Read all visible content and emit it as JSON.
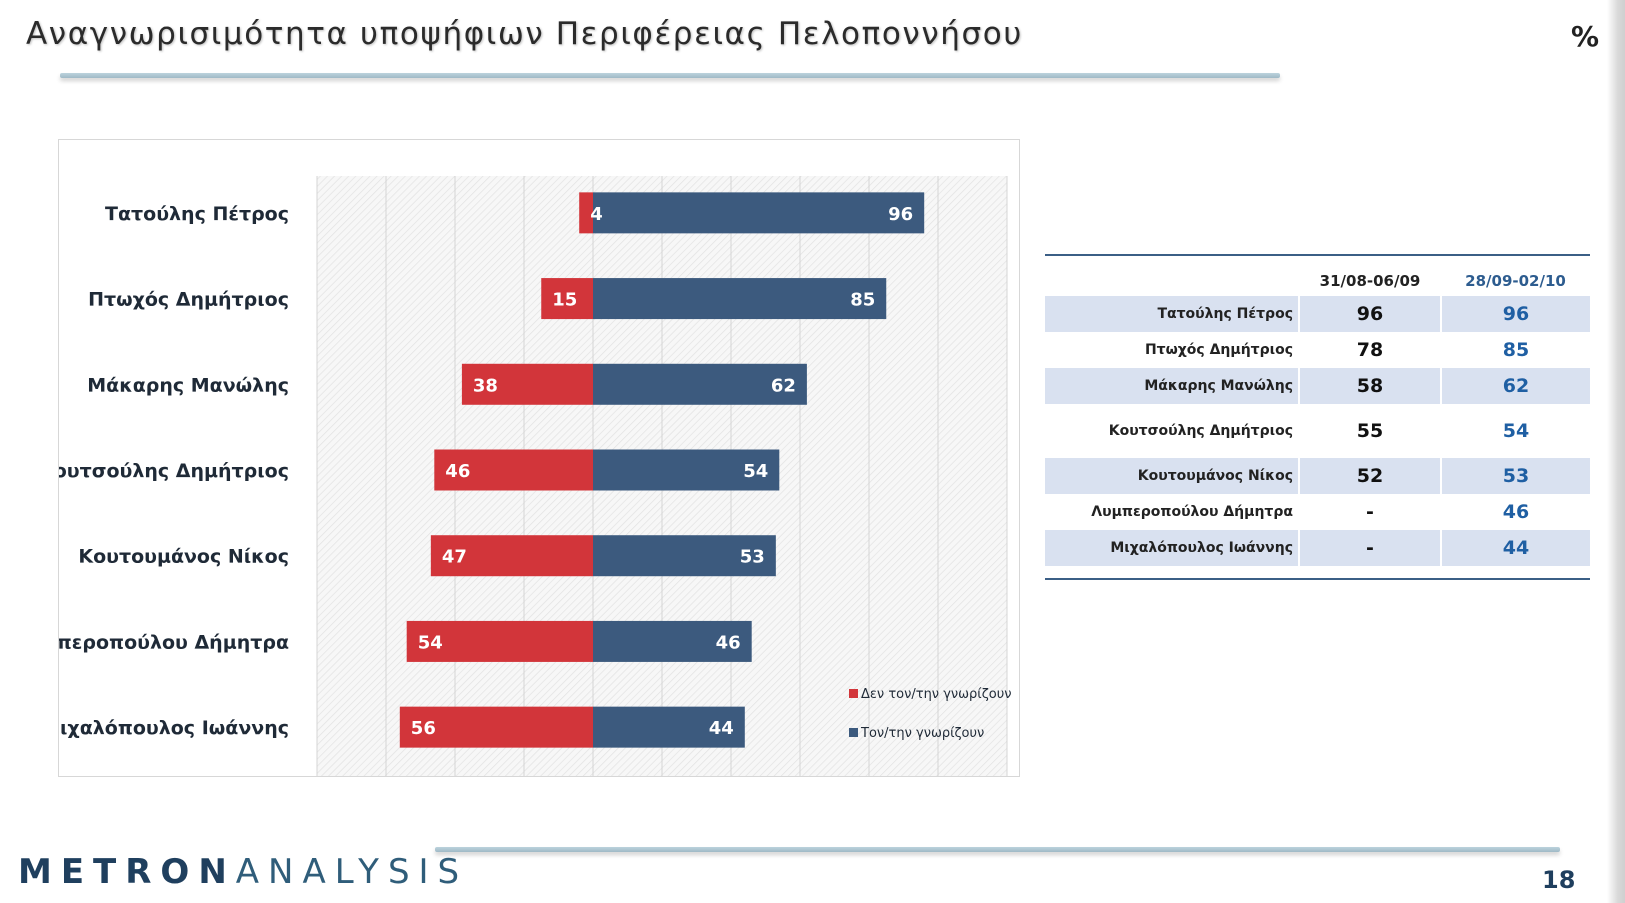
{
  "header": {
    "title": "Αναγνωρισιμότητα υποψήφιων Περιφέρειας Πελοποννήσου",
    "unit": "%"
  },
  "colors": {
    "unknown": "#d2353a",
    "known": "#3c5a7e",
    "table_shade": "#d9e1f0",
    "period2_text": "#1f5fa3"
  },
  "chart_data": {
    "type": "bar",
    "orientation": "horizontal-diverging",
    "categories": [
      "Τατούλης Πέτρος",
      "Πτωχός Δημήτριος",
      "Μάκαρης Μανώλης",
      "Κουτσούλης Δημήτριος",
      "Κουτουμάνος Νίκος",
      "Λυμπεροπούλου Δήμητρα",
      "Μιχαλόπουλος Ιωάννης"
    ],
    "series": [
      {
        "name": "Δεν τον/την γνωρίζουν",
        "values": [
          4,
          15,
          38,
          46,
          47,
          54,
          56
        ],
        "direction": "left"
      },
      {
        "name": "Τον/την γνωρίζουν",
        "values": [
          96,
          85,
          62,
          54,
          53,
          46,
          44
        ],
        "direction": "right"
      }
    ],
    "xlim": [
      -80,
      120
    ],
    "grid": true,
    "legend_position": "bottom-right"
  },
  "table": {
    "headers": [
      "31/08-06/09",
      "28/09-02/10"
    ],
    "rows": [
      {
        "name": "Τατούλης Πέτρος",
        "v1": "96",
        "v2": "96"
      },
      {
        "name": "Πτωχός Δημήτριος",
        "v1": "78",
        "v2": "85"
      },
      {
        "name": "Μάκαρης Μανώλης",
        "v1": "58",
        "v2": "62"
      },
      {
        "name": "Κουτσούλης Δημήτριος",
        "v1": "55",
        "v2": "54"
      },
      {
        "name": "Κουτουμάνος Νίκος",
        "v1": "52",
        "v2": "53"
      },
      {
        "name": "Λυμπεροπούλου Δήμητρα",
        "v1": "-",
        "v2": "46"
      },
      {
        "name": "Μιχαλόπουλος Ιωάννης",
        "v1": "-",
        "v2": "44"
      }
    ]
  },
  "footer": {
    "logo_part1": "METRON",
    "logo_part2": "ANALYSIS",
    "page_number": "18"
  }
}
